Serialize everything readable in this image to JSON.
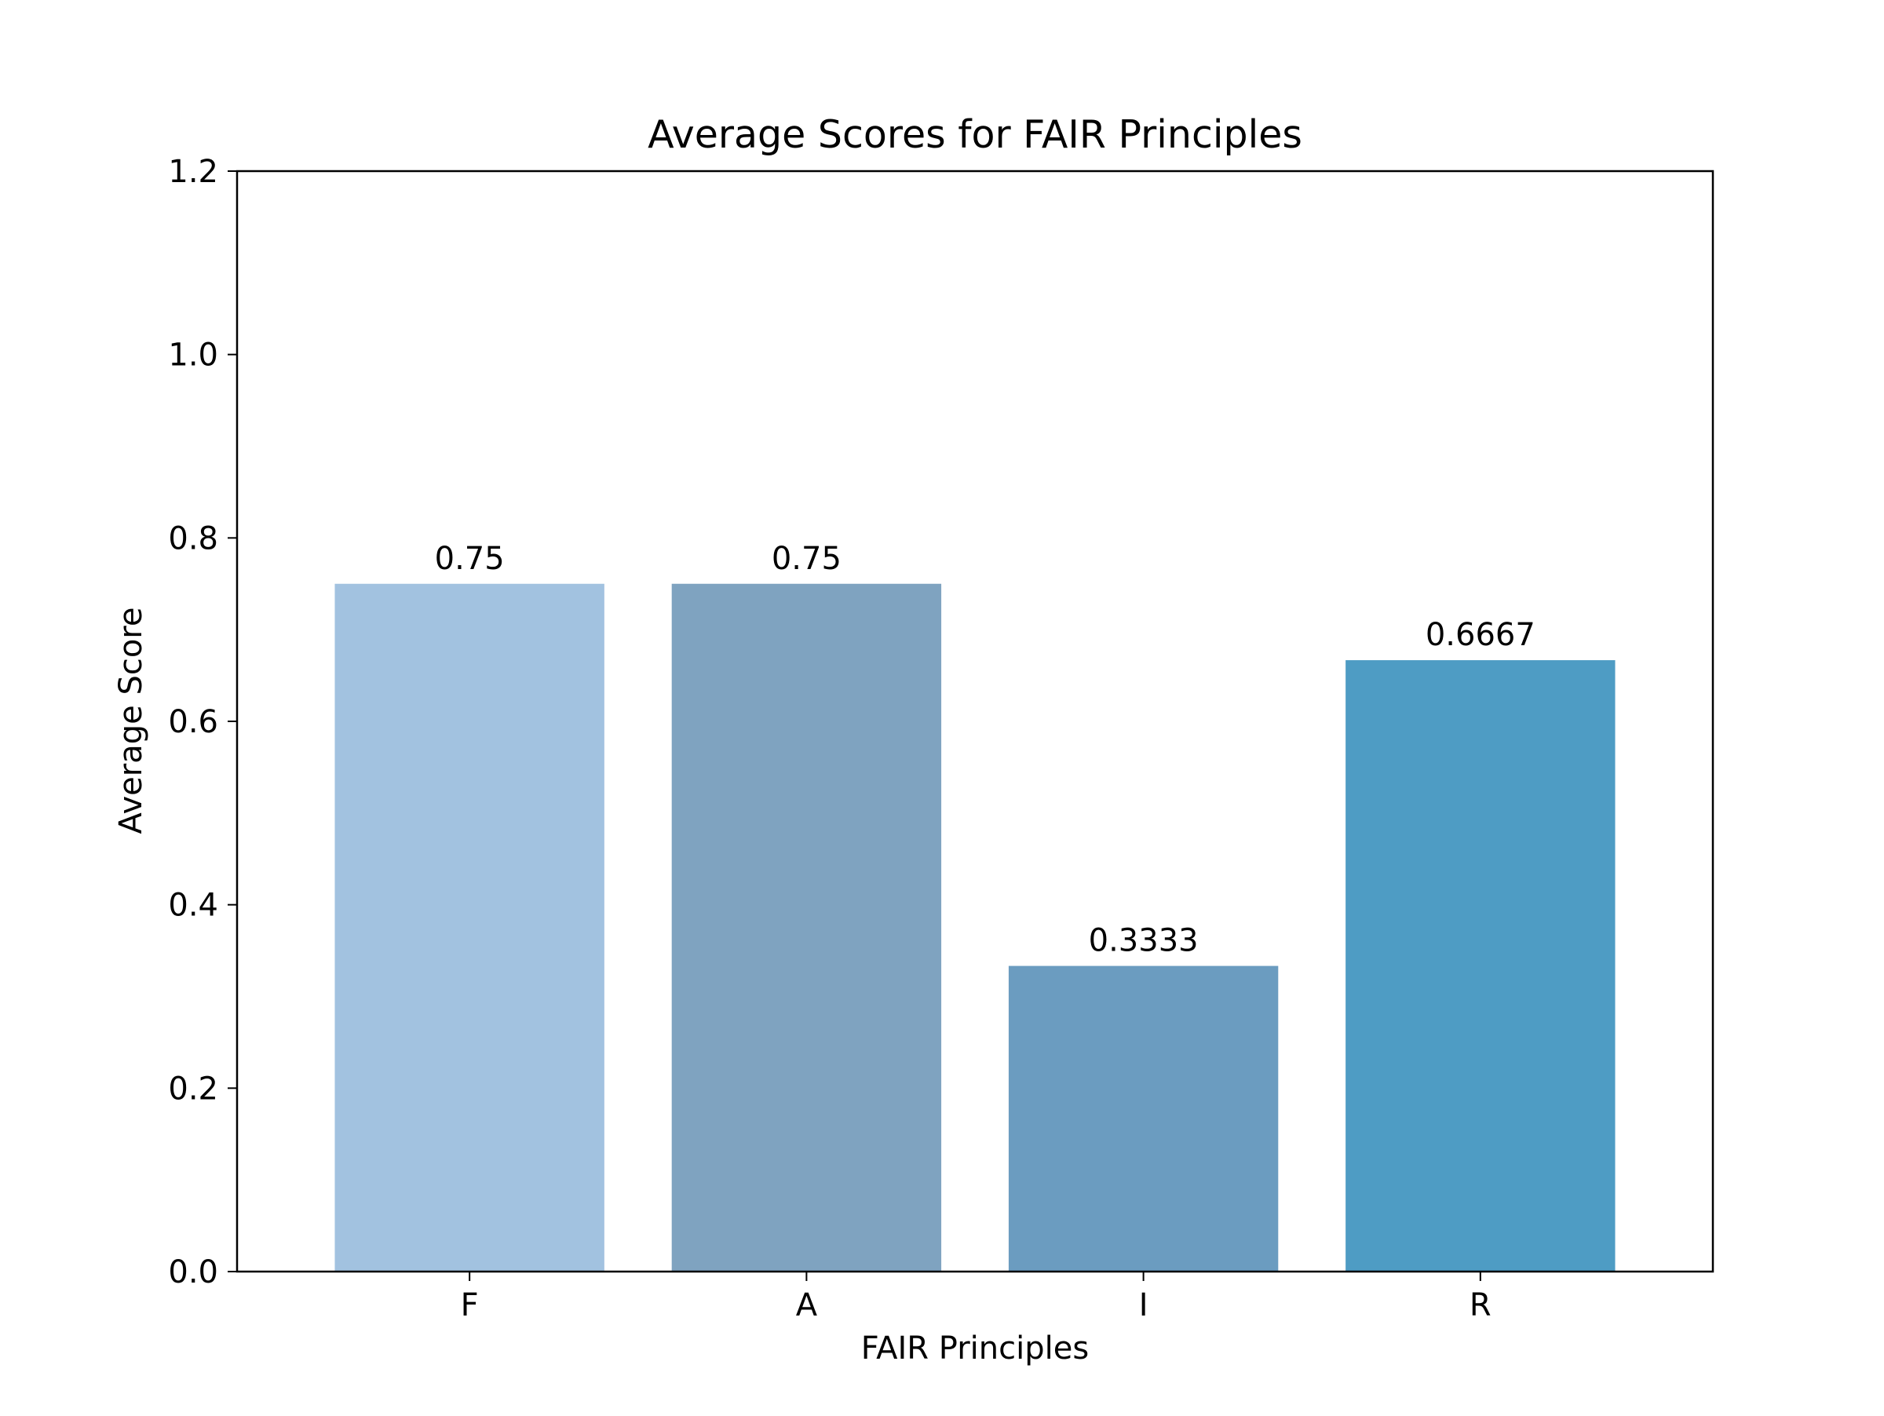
{
  "chart_data": {
    "type": "bar",
    "title": "Average Scores for FAIR Principles",
    "xlabel": "FAIR Principles",
    "ylabel": "Average Score",
    "categories": [
      "F",
      "A",
      "I",
      "R"
    ],
    "values": [
      0.75,
      0.75,
      0.3333,
      0.6667
    ],
    "data_labels": [
      "0.75",
      "0.75",
      "0.3333",
      "0.6667"
    ],
    "bar_colors": [
      "#a2c2e0",
      "#7fa3c0",
      "#6b9cc0",
      "#4e9cc4"
    ],
    "ylim": [
      0,
      1.2
    ],
    "yticks": [
      0.0,
      0.2,
      0.4,
      0.6,
      0.8,
      1.0,
      1.2
    ],
    "ytick_labels": [
      "0.0",
      "0.2",
      "0.4",
      "0.6",
      "0.8",
      "1.0",
      "1.2"
    ],
    "grid": false,
    "legend": "none"
  }
}
